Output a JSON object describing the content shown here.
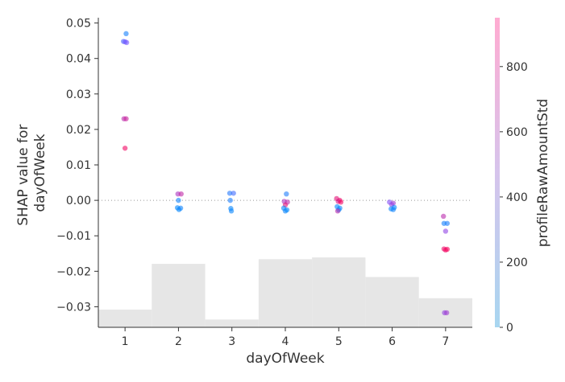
{
  "chart_data": {
    "type": "scatter",
    "xlabel": "dayOfWeek",
    "ylabel": [
      "SHAP value for",
      "dayOfWeek"
    ],
    "x_ticks": [
      1,
      2,
      3,
      4,
      5,
      6,
      7
    ],
    "y_ticks": [
      "0.05",
      "0.04",
      "0.03",
      "0.02",
      "0.01",
      "0.00",
      "−0.01",
      "−0.02",
      "−0.03"
    ],
    "y_tick_values": [
      0.05,
      0.04,
      0.03,
      0.02,
      0.01,
      0.0,
      -0.01,
      -0.02,
      -0.03
    ],
    "xlim": [
      0.5,
      7.5
    ],
    "ylim": [
      -0.0358,
      0.0515
    ],
    "zero_line": 0.0,
    "colorbar": {
      "label": "profileRawAmountStd",
      "range": [
        0,
        950
      ],
      "ticks": [
        0,
        200,
        400,
        600,
        800
      ],
      "color_low": "#a8d6f0",
      "color_high": "#ffabd1"
    },
    "histogram": {
      "tops": [
        -0.0308,
        -0.0179,
        -0.0336,
        -0.0166,
        -0.0161,
        -0.0216,
        -0.0276
      ]
    },
    "points": [
      {
        "x": 1.02,
        "y": 0.047,
        "c": 80
      },
      {
        "x": 0.97,
        "y": 0.0448,
        "c": 300
      },
      {
        "x": 1.0,
        "y": 0.0447,
        "c": 420
      },
      {
        "x": 1.03,
        "y": 0.0445,
        "c": 440
      },
      {
        "x": 0.98,
        "y": 0.023,
        "c": 700
      },
      {
        "x": 1.02,
        "y": 0.023,
        "c": 750
      },
      {
        "x": 1.0,
        "y": 0.0147,
        "c": 900
      },
      {
        "x": 1.99,
        "y": 0.0018,
        "c": 650
      },
      {
        "x": 2.05,
        "y": 0.0018,
        "c": 720
      },
      {
        "x": 2.0,
        "y": 0.0,
        "c": 60
      },
      {
        "x": 1.98,
        "y": -0.0021,
        "c": 20
      },
      {
        "x": 2.04,
        "y": -0.0022,
        "c": 60
      },
      {
        "x": 2.01,
        "y": -0.0026,
        "c": 30
      },
      {
        "x": 2.96,
        "y": 0.002,
        "c": 150
      },
      {
        "x": 3.03,
        "y": 0.002,
        "c": 250
      },
      {
        "x": 2.97,
        "y": 0.0,
        "c": 100
      },
      {
        "x": 2.98,
        "y": -0.0023,
        "c": 30
      },
      {
        "x": 2.99,
        "y": -0.003,
        "c": 40
      },
      {
        "x": 4.02,
        "y": 0.0018,
        "c": 120
      },
      {
        "x": 3.98,
        "y": -0.0003,
        "c": 650
      },
      {
        "x": 4.04,
        "y": -0.0005,
        "c": 700
      },
      {
        "x": 4.0,
        "y": -0.0013,
        "c": 850
      },
      {
        "x": 3.97,
        "y": -0.0022,
        "c": 30
      },
      {
        "x": 4.03,
        "y": -0.0027,
        "c": 10
      },
      {
        "x": 4.0,
        "y": -0.003,
        "c": 40
      },
      {
        "x": 4.96,
        "y": 0.0005,
        "c": 850
      },
      {
        "x": 5.02,
        "y": 0.0,
        "c": 880
      },
      {
        "x": 4.99,
        "y": -0.0003,
        "c": 800
      },
      {
        "x": 5.04,
        "y": -0.0005,
        "c": 900
      },
      {
        "x": 4.97,
        "y": -0.0018,
        "c": 20
      },
      {
        "x": 5.02,
        "y": -0.0022,
        "c": 50
      },
      {
        "x": 5.0,
        "y": -0.0027,
        "c": 10
      },
      {
        "x": 4.98,
        "y": -0.003,
        "c": 700
      },
      {
        "x": 5.95,
        "y": -0.0005,
        "c": 500
      },
      {
        "x": 6.02,
        "y": -0.0008,
        "c": 600
      },
      {
        "x": 5.99,
        "y": -0.0012,
        "c": 550
      },
      {
        "x": 6.04,
        "y": -0.002,
        "c": 20
      },
      {
        "x": 5.98,
        "y": -0.0024,
        "c": 40
      },
      {
        "x": 6.02,
        "y": -0.0026,
        "c": 60
      },
      {
        "x": 6.96,
        "y": -0.0045,
        "c": 700
      },
      {
        "x": 6.97,
        "y": -0.0065,
        "c": 80
      },
      {
        "x": 7.03,
        "y": -0.0065,
        "c": 100
      },
      {
        "x": 7.0,
        "y": -0.0087,
        "c": 550
      },
      {
        "x": 6.97,
        "y": -0.0137,
        "c": 880
      },
      {
        "x": 7.0,
        "y": -0.014,
        "c": 900
      },
      {
        "x": 7.03,
        "y": -0.0138,
        "c": 920
      },
      {
        "x": 6.98,
        "y": -0.0317,
        "c": 560
      },
      {
        "x": 7.02,
        "y": -0.0317,
        "c": 600
      }
    ]
  }
}
